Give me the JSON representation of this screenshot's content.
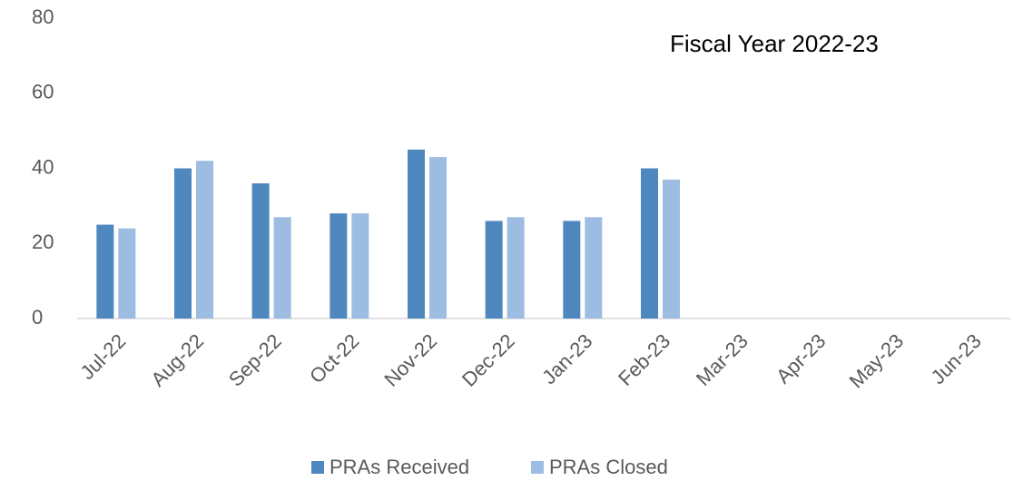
{
  "chart_data": {
    "type": "bar",
    "title": "Fiscal Year 2022-23",
    "categories": [
      "Jul-22",
      "Aug-22",
      "Sep-22",
      "Oct-22",
      "Nov-22",
      "Dec-22",
      "Jan-23",
      "Feb-23",
      "Mar-23",
      "Apr-23",
      "May-23",
      "Jun-23"
    ],
    "series": [
      {
        "name": "PRAs Received",
        "color": "#4f87bf",
        "values": [
          25,
          40,
          36,
          28,
          45,
          26,
          26,
          40,
          null,
          null,
          null,
          null
        ]
      },
      {
        "name": "PRAs Closed",
        "color": "#9cbce2",
        "values": [
          24,
          42,
          27,
          28,
          43,
          27,
          27,
          37,
          null,
          null,
          null,
          null
        ]
      }
    ],
    "ylim": [
      0,
      80
    ],
    "yticks": [
      0,
      20,
      40,
      60,
      80
    ],
    "grid": false,
    "legend": "bottom"
  }
}
